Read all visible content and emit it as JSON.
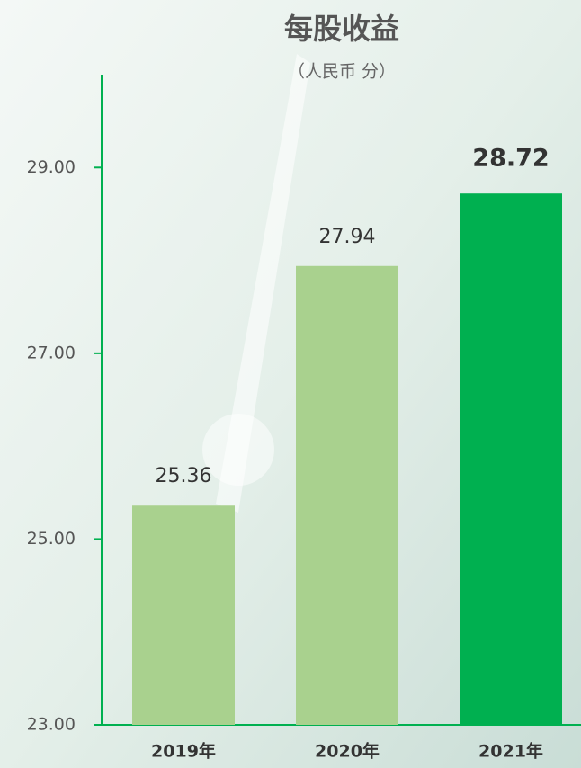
{
  "chart_data": {
    "type": "bar",
    "title": "每股收益",
    "subtitle": "（人民币 分）",
    "categories": [
      "2019年",
      "2020年",
      "2021年"
    ],
    "values": [
      25.36,
      27.94,
      28.72
    ],
    "colors": [
      "#a9d18e",
      "#a9d18e",
      "#00b050"
    ],
    "ylim": [
      23,
      30
    ],
    "yticks": [
      {
        "value": 23,
        "label": "23.00"
      },
      {
        "value": 25,
        "label": "25.00"
      },
      {
        "value": 27,
        "label": "27.00"
      },
      {
        "value": 29,
        "label": "29.00"
      }
    ],
    "grid": false
  }
}
